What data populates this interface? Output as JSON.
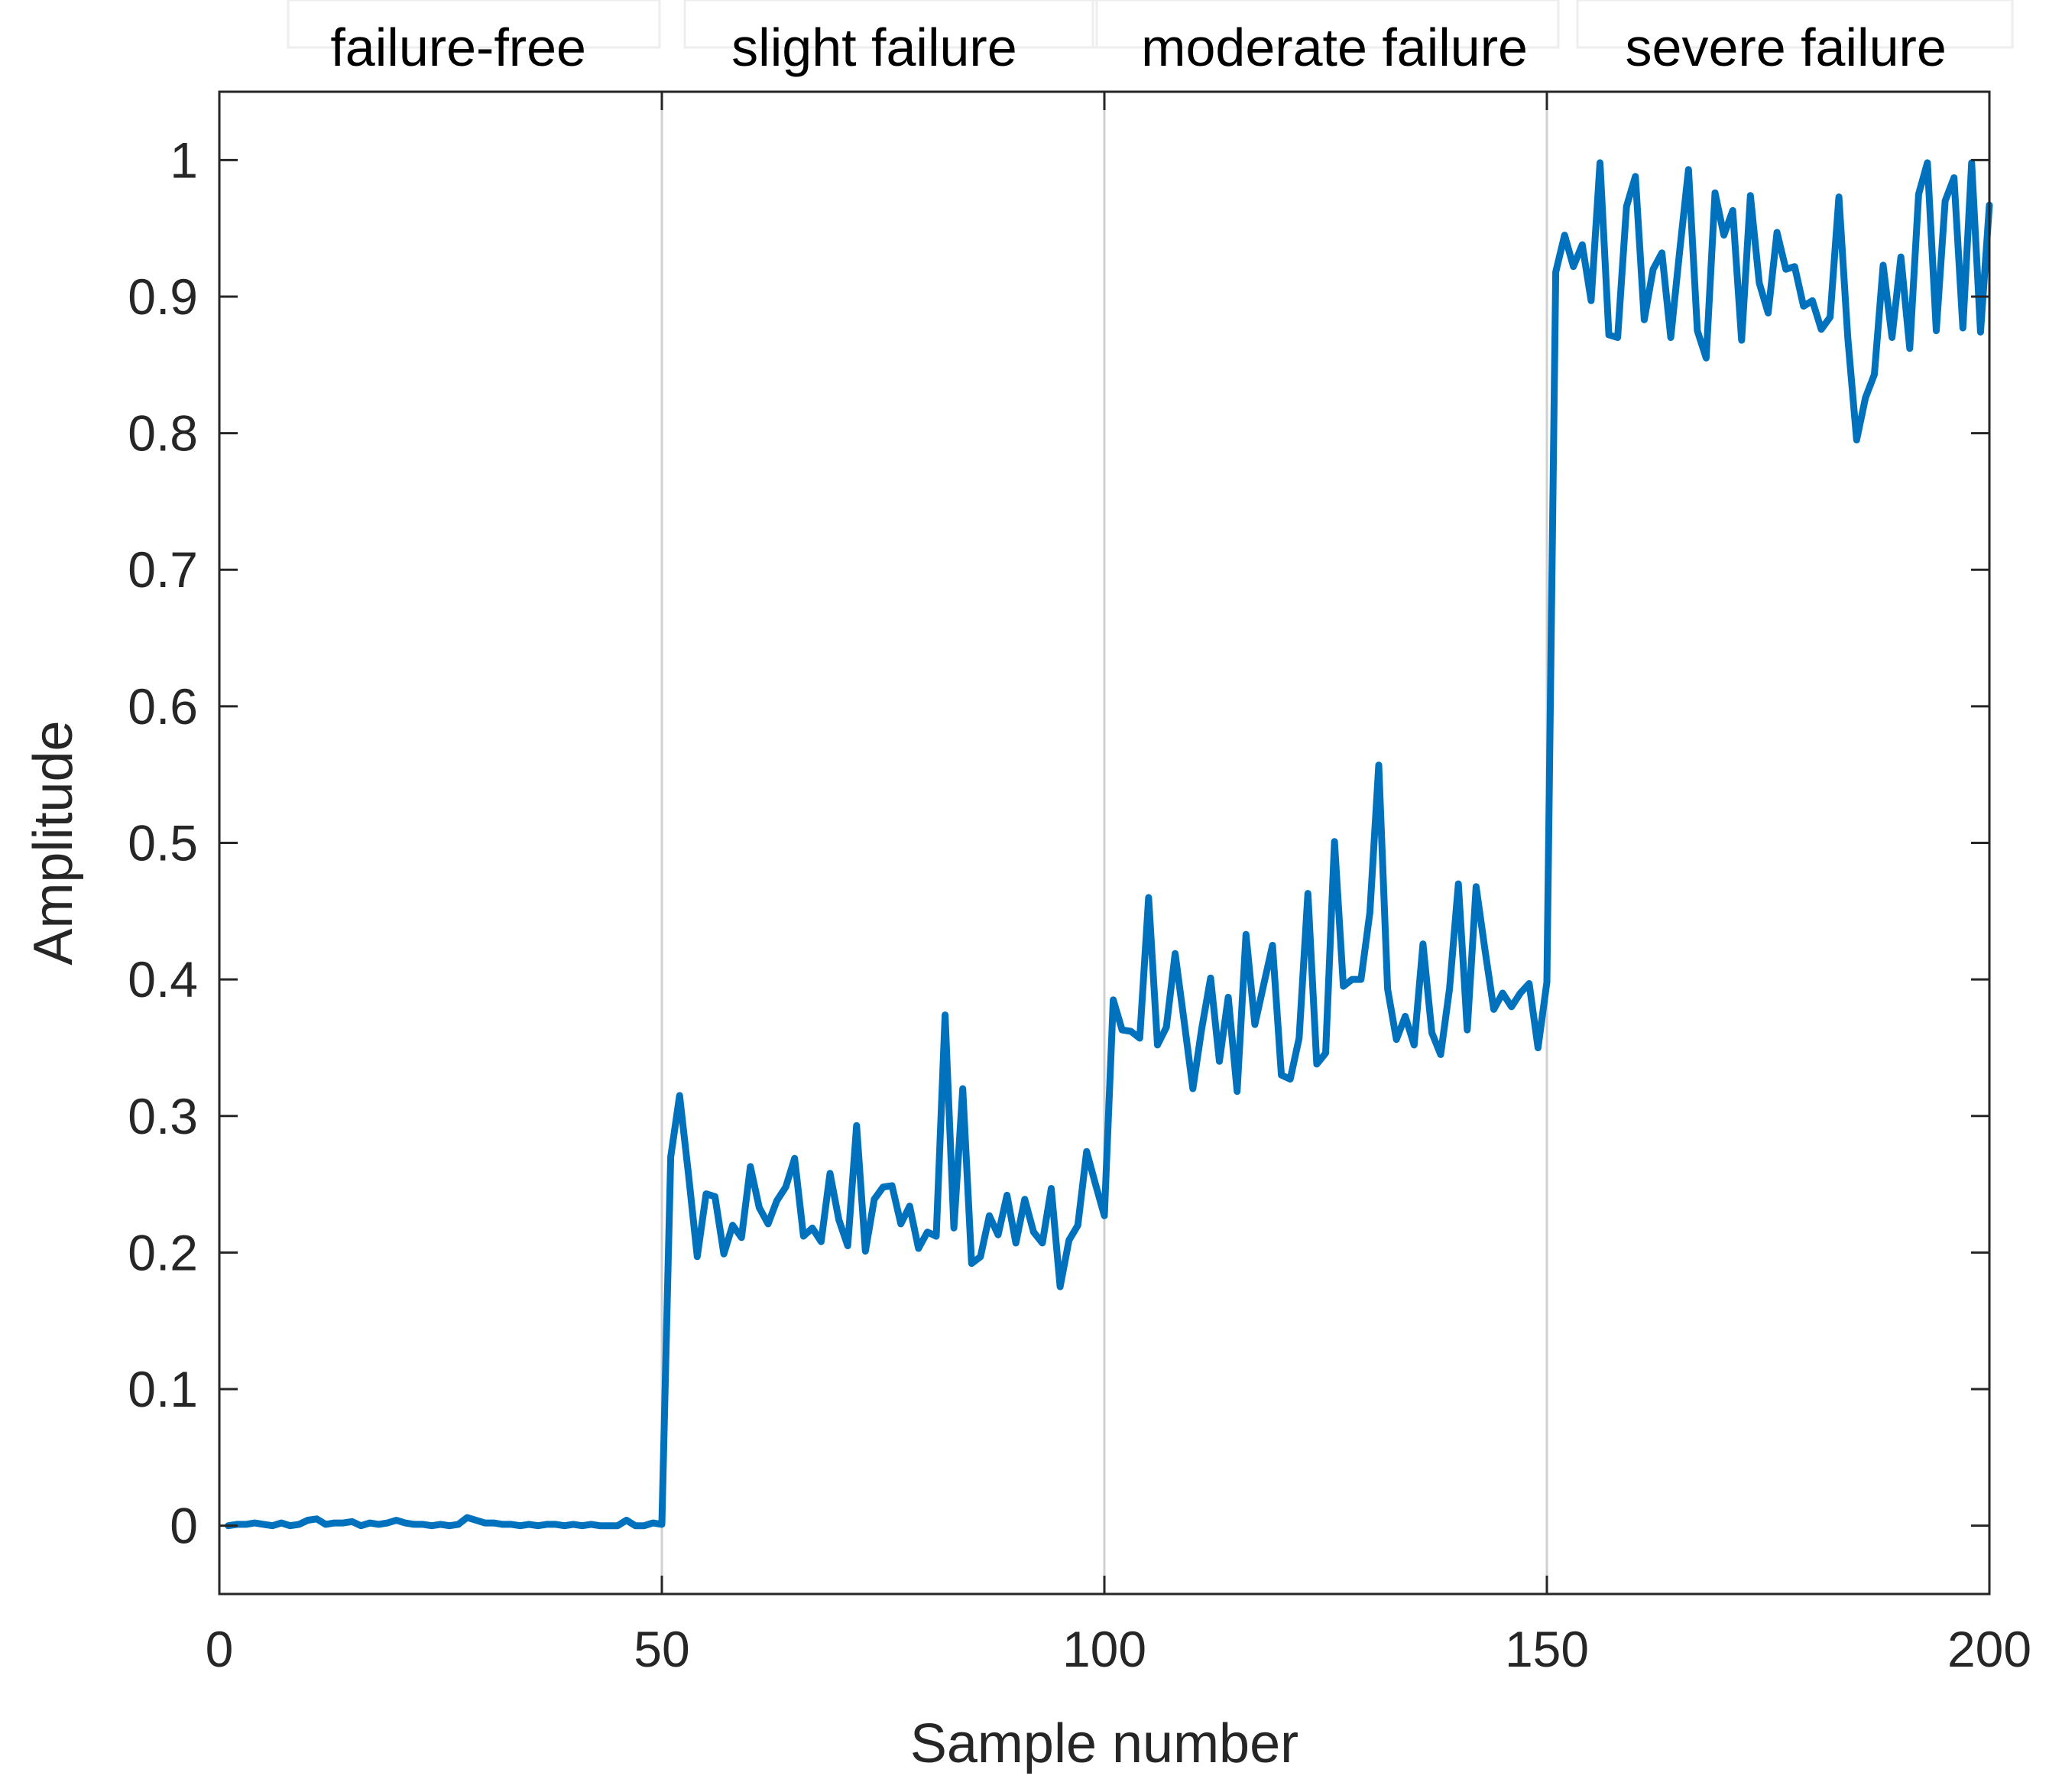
{
  "chart_data": {
    "type": "line",
    "title": "",
    "xlabel": "Sample number",
    "ylabel": "Amplitude",
    "xlim": [
      0,
      200
    ],
    "ylim": [
      -0.05,
      1.05
    ],
    "xticks": [
      0,
      50,
      100,
      150,
      200
    ],
    "xtick_labels": [
      "0",
      "50",
      "100",
      "150",
      "200"
    ],
    "yticks": [
      0,
      0.1,
      0.2,
      0.3,
      0.4,
      0.5,
      0.6,
      0.7,
      0.8,
      0.9,
      1
    ],
    "ytick_labels": [
      "0",
      "0.1",
      "0.2",
      "0.3",
      "0.4",
      "0.5",
      "0.6",
      "0.7",
      "0.8",
      "0.9",
      "1"
    ],
    "grid": false,
    "color": "#0072BD",
    "separator_color": "#d0d0d0",
    "separators_x": [
      50,
      100,
      150
    ],
    "annotations": [
      {
        "text": "failure-free",
        "x": 27
      },
      {
        "text": "slight failure",
        "x": 74
      },
      {
        "text": "moderate failure",
        "x": 126
      },
      {
        "text": "severe failure",
        "x": 177
      }
    ],
    "series": [
      {
        "x": [
          1,
          2,
          3,
          4,
          5,
          6,
          7,
          8,
          9,
          10,
          11,
          12,
          13,
          14,
          15,
          16,
          17,
          18,
          19,
          20,
          21,
          22,
          23,
          24,
          25,
          26,
          27,
          28,
          29,
          30,
          31,
          32,
          33,
          34,
          35,
          36,
          37,
          38,
          39,
          40,
          41,
          42,
          43,
          44,
          45,
          46,
          47,
          48,
          49,
          50,
          51,
          52,
          53,
          54,
          55,
          56,
          57,
          58,
          59,
          60,
          61,
          62,
          63,
          64,
          65,
          66,
          67,
          68,
          69,
          70,
          71,
          72,
          73,
          74,
          75,
          76,
          77,
          78,
          79,
          80,
          81,
          82,
          83,
          84,
          85,
          86,
          87,
          88,
          89,
          90,
          91,
          92,
          93,
          94,
          95,
          96,
          97,
          98,
          99,
          100,
          101,
          102,
          103,
          104,
          105,
          106,
          107,
          108,
          109,
          110,
          111,
          112,
          113,
          114,
          115,
          116,
          117,
          118,
          119,
          120,
          121,
          122,
          123,
          124,
          125,
          126,
          127,
          128,
          129,
          130,
          131,
          132,
          133,
          134,
          135,
          136,
          137,
          138,
          139,
          140,
          141,
          142,
          143,
          144,
          145,
          146,
          147,
          148,
          149,
          150,
          151,
          152,
          153,
          154,
          155,
          156,
          157,
          158,
          159,
          160,
          161,
          162,
          163,
          164,
          165,
          166,
          167,
          168,
          169,
          170,
          171,
          172,
          173,
          174,
          175,
          176,
          177,
          178,
          179,
          180,
          181,
          182,
          183,
          184,
          185,
          186,
          187,
          188,
          189,
          190,
          191,
          192,
          193,
          194,
          195,
          196,
          197,
          198,
          199,
          200
        ],
        "values": [
          0.0,
          0.001,
          0.001,
          0.002,
          0.001,
          0.0,
          0.002,
          0.0,
          0.001,
          0.004,
          0.005,
          0.001,
          0.002,
          0.002,
          0.003,
          0.0,
          0.002,
          0.001,
          0.002,
          0.004,
          0.002,
          0.001,
          0.001,
          0.0,
          0.001,
          0.0,
          0.001,
          0.006,
          0.004,
          0.002,
          0.002,
          0.001,
          0.001,
          0.0,
          0.001,
          0.0,
          0.001,
          0.001,
          0.0,
          0.001,
          0.0,
          0.001,
          0.0,
          0.0,
          0.0,
          0.004,
          0.0,
          0.0,
          0.002,
          0.001,
          0.27,
          0.315,
          0.258,
          0.197,
          0.243,
          0.241,
          0.199,
          0.22,
          0.211,
          0.263,
          0.233,
          0.221,
          0.238,
          0.248,
          0.269,
          0.212,
          0.218,
          0.208,
          0.258,
          0.224,
          0.205,
          0.293,
          0.201,
          0.239,
          0.248,
          0.249,
          0.221,
          0.234,
          0.203,
          0.215,
          0.212,
          0.374,
          0.218,
          0.32,
          0.192,
          0.197,
          0.227,
          0.213,
          0.242,
          0.207,
          0.239,
          0.215,
          0.207,
          0.247,
          0.175,
          0.209,
          0.22,
          0.274,
          0.25,
          0.227,
          0.385,
          0.363,
          0.362,
          0.357,
          0.46,
          0.352,
          0.365,
          0.419,
          0.37,
          0.32,
          0.364,
          0.401,
          0.34,
          0.387,
          0.318,
          0.433,
          0.367,
          0.396,
          0.425,
          0.33,
          0.327,
          0.357,
          0.463,
          0.338,
          0.346,
          0.501,
          0.395,
          0.4,
          0.4,
          0.449,
          0.557,
          0.393,
          0.356,
          0.373,
          0.352,
          0.426,
          0.361,
          0.345,
          0.393,
          0.47,
          0.363,
          0.468,
          0.422,
          0.378,
          0.39,
          0.38,
          0.39,
          0.397,
          0.35,
          0.398,
          0.918,
          0.945,
          0.922,
          0.938,
          0.897,
          0.998,
          0.872,
          0.87,
          0.966,
          0.988,
          0.883,
          0.92,
          0.932,
          0.87,
          0.933,
          0.993,
          0.875,
          0.855,
          0.976,
          0.945,
          0.963,
          0.868,
          0.974,
          0.91,
          0.888,
          0.947,
          0.92,
          0.922,
          0.893,
          0.897,
          0.876,
          0.885,
          0.973,
          0.87,
          0.795,
          0.826,
          0.843,
          0.923,
          0.87,
          0.929,
          0.862,
          0.975,
          0.998,
          0.875,
          0.97,
          0.987,
          0.877,
          0.998,
          0.874,
          0.967
        ]
      }
    ]
  }
}
